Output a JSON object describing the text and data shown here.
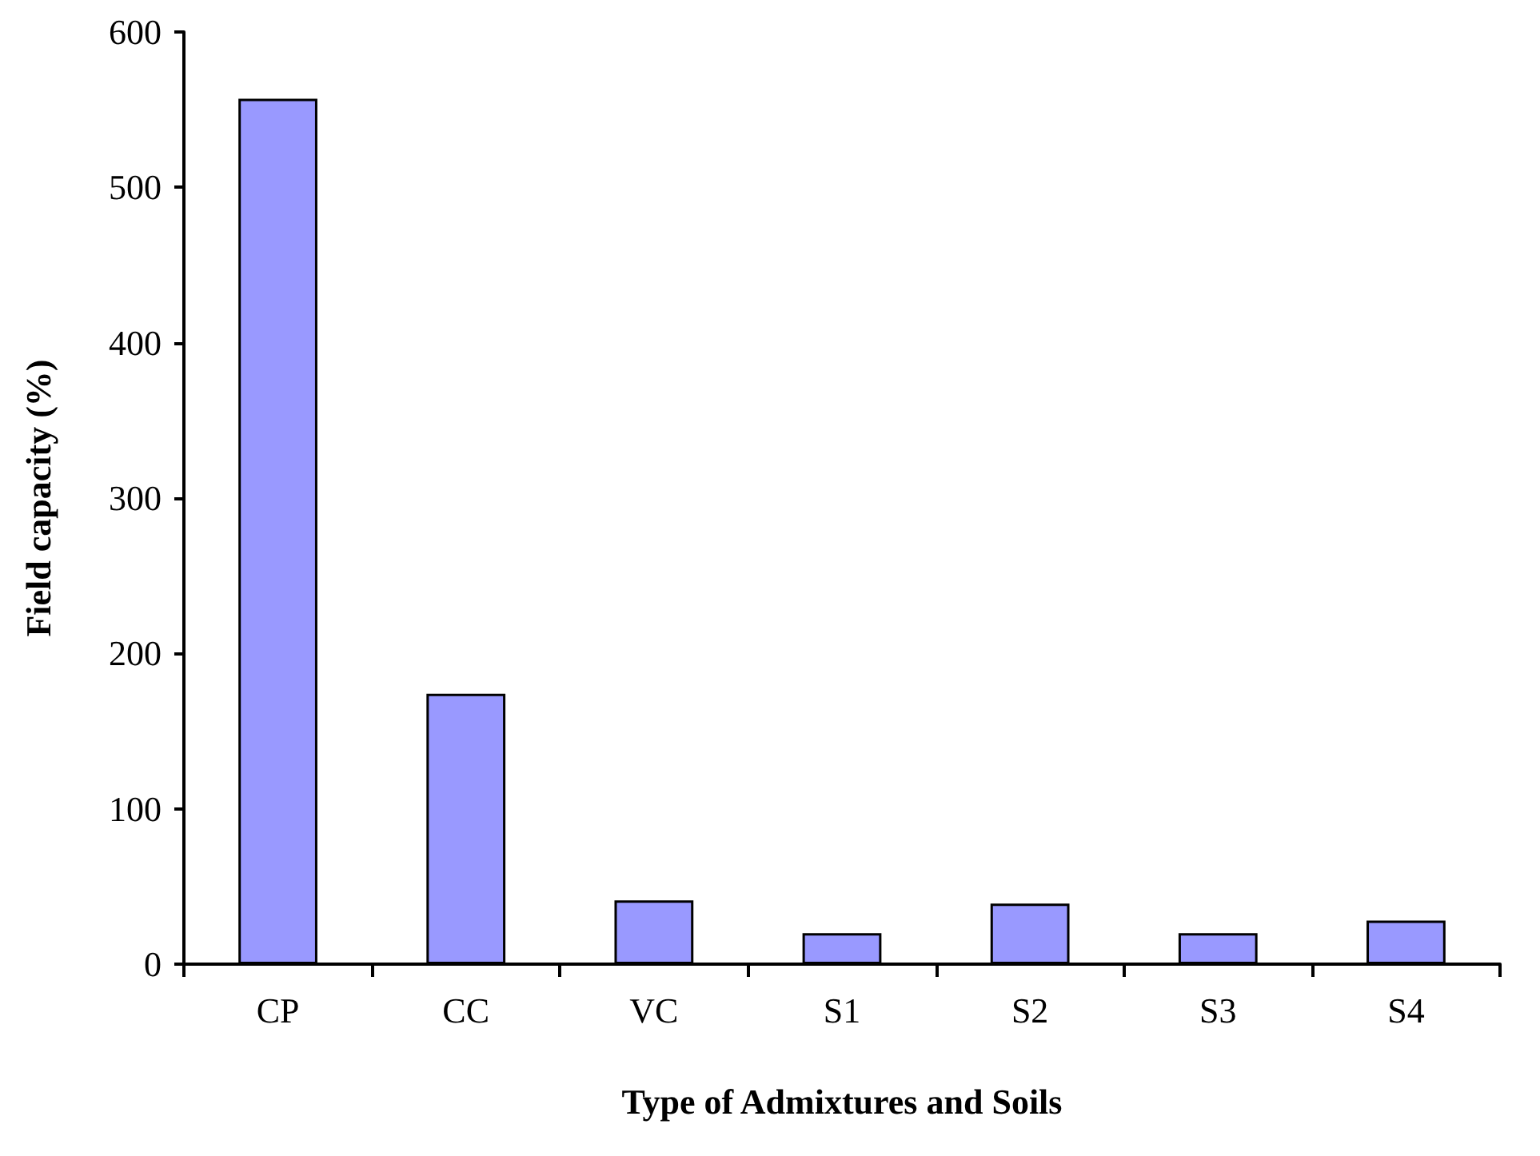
{
  "chart_data": {
    "type": "bar",
    "xlabel": "Type of Admixtures and Soils",
    "ylabel": "Field capacity (%)",
    "categories": [
      "CP",
      "CC",
      "VC",
      "S1",
      "S2",
      "S3",
      "S4"
    ],
    "values": [
      557,
      174,
      41,
      20,
      39,
      20,
      28
    ],
    "color": "#9999ff",
    "ylim": [
      0,
      600
    ],
    "yticks": [
      0,
      100,
      200,
      300,
      400,
      500,
      600
    ],
    "grid": false
  }
}
